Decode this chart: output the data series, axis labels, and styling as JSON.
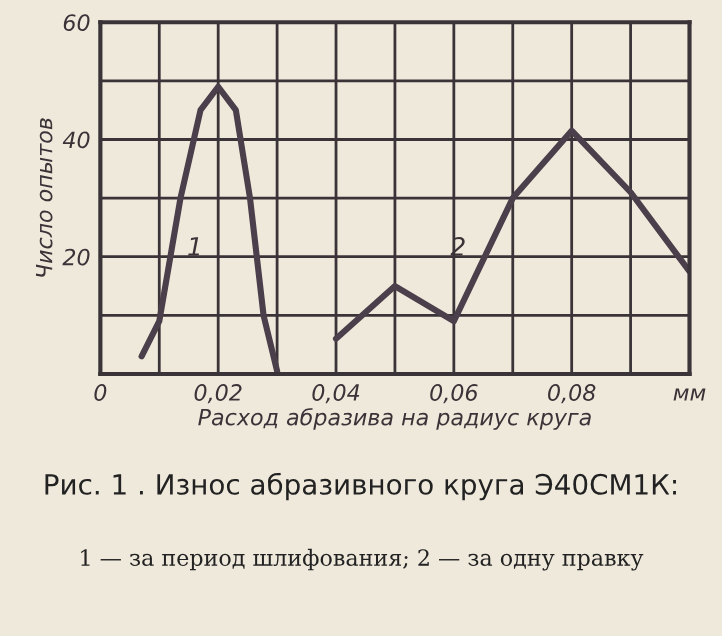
{
  "chart_data": {
    "type": "line",
    "title": "Рис. 1 . Износ абразивного круга Э40СМ1К:",
    "subtitle": "1 — за период шлифования; 2 — за одну правку",
    "xlabel": "Расход абразива на радиус круга",
    "ylabel": "Число опытов",
    "series": [
      {
        "name": "1",
        "color": "#4a3f4a",
        "x": [
          0.007,
          0.01,
          0.0136,
          0.017,
          0.02,
          0.023,
          0.0254,
          0.0277,
          0.03
        ],
        "values": [
          3,
          9,
          30,
          45,
          49,
          45,
          30,
          10,
          0.5
        ]
      },
      {
        "name": "2",
        "color": "#4a3f4a",
        "x": [
          0.04,
          0.05,
          0.06,
          0.07,
          0.08,
          0.09,
          0.1
        ],
        "values": [
          6,
          15,
          9,
          30,
          41.5,
          31,
          17.5
        ]
      }
    ],
    "xlim": [
      0,
      0.1
    ],
    "ylim": [
      0,
      60
    ],
    "xticks": [
      {
        "value": 0,
        "label": "0"
      },
      {
        "value": 0.01,
        "label": null
      },
      {
        "value": 0.02,
        "label": "0,02"
      },
      {
        "value": 0.03,
        "label": null
      },
      {
        "value": 0.04,
        "label": "0,04"
      },
      {
        "value": 0.05,
        "label": null
      },
      {
        "value": 0.06,
        "label": "0,06"
      },
      {
        "value": 0.07,
        "label": null
      },
      {
        "value": 0.08,
        "label": "0,08"
      },
      {
        "value": 0.09,
        "label": null
      },
      {
        "value": 0.1,
        "label": "мм"
      }
    ],
    "yticks": [
      {
        "value": 0,
        "label": null
      },
      {
        "value": 10,
        "label": null
      },
      20,
      {
        "value": 30,
        "label": null
      },
      40,
      {
        "value": 50,
        "label": null
      },
      60
    ],
    "grid": true,
    "legend": false,
    "marker": "none",
    "line_style": "solid"
  }
}
